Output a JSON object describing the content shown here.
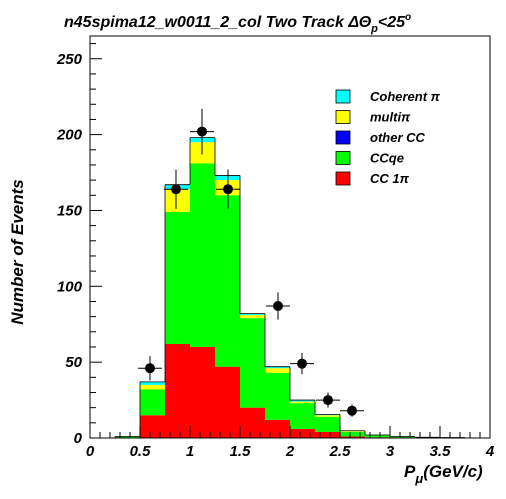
{
  "chart_data": {
    "type": "bar",
    "stacked": true,
    "title": "n45spima12_w0011_2_col Two Track ΔΘp<25°",
    "title_main": "n45spima12_w0011_2_col Two Track ",
    "title_delta": "ΔΘ",
    "title_sub": "p",
    "title_cut": "<25",
    "title_sup": "o",
    "xlabel": "Pμ(GeV/c)",
    "xlabel_main": "P",
    "xlabel_sub": "μ",
    "xlabel_unit": "(GeV/c)",
    "ylabel": "Number of Events",
    "xlim": [
      0,
      4
    ],
    "ylim": [
      0,
      265
    ],
    "x_ticks": [
      "0",
      "0.5",
      "1",
      "1.5",
      "2",
      "2.5",
      "3",
      "3.5",
      "4"
    ],
    "y_ticks": [
      "0",
      "50",
      "100",
      "150",
      "200",
      "250"
    ],
    "bin_edges": [
      0,
      0.25,
      0.5,
      0.75,
      1.0,
      1.25,
      1.5,
      1.75,
      2.0,
      2.25,
      2.5,
      2.75,
      3.0,
      3.25,
      3.5,
      3.75,
      4.0
    ],
    "series": [
      {
        "name": "CC 1π",
        "color": "#ff0000",
        "values": [
          0,
          0,
          15,
          62,
          60,
          47,
          20,
          12,
          6,
          4,
          1,
          0.5,
          0.3,
          0,
          0,
          0
        ]
      },
      {
        "name": "CCqe",
        "color": "#00ff00",
        "values": [
          0,
          1,
          17,
          87,
          121,
          113,
          59,
          31,
          17,
          10,
          3,
          1.5,
          0.7,
          0.5,
          0.3,
          0
        ]
      },
      {
        "name": "other CC",
        "color": "#0000ff",
        "values": [
          0,
          0,
          0,
          0,
          0,
          0,
          0,
          0,
          0,
          0,
          0,
          0,
          0,
          0,
          0,
          0
        ]
      },
      {
        "name": "multiπ",
        "color": "#ffff00",
        "values": [
          0,
          0,
          3,
          15,
          14,
          10,
          2,
          3,
          1,
          1,
          0.5,
          0,
          0,
          0,
          0,
          0
        ]
      },
      {
        "name": "Coherent π",
        "color": "#00ffff",
        "values": [
          0,
          0,
          2,
          3,
          3,
          3,
          1,
          1,
          1,
          0.5,
          0.3,
          0,
          0,
          0,
          0,
          0
        ]
      }
    ],
    "data_points": [
      {
        "x": 0.6,
        "y": 46,
        "err": 8
      },
      {
        "x": 0.86,
        "y": 164,
        "err": 13
      },
      {
        "x": 1.12,
        "y": 202,
        "err": 15
      },
      {
        "x": 1.38,
        "y": 164,
        "err": 13
      },
      {
        "x": 1.88,
        "y": 87,
        "err": 9
      },
      {
        "x": 2.12,
        "y": 49,
        "err": 7
      },
      {
        "x": 2.38,
        "y": 25,
        "err": 5
      },
      {
        "x": 2.62,
        "y": 18,
        "err": 4
      }
    ],
    "legend_order": [
      "Coherent π",
      "multiπ",
      "other CC",
      "CCqe",
      "CC 1π"
    ],
    "legend_position": "top-right",
    "grid": false
  }
}
